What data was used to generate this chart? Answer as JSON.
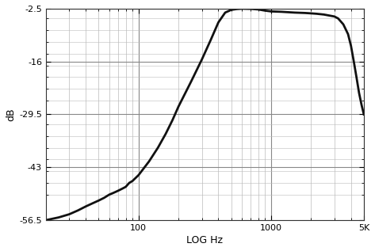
{
  "title": "",
  "xlabel": "LOG Hz",
  "ylabel": "dB",
  "xlim": [
    20,
    5000
  ],
  "ylim": [
    -56.5,
    -2.5
  ],
  "yticks": [
    -56.5,
    -43,
    -29.5,
    -16,
    -2.5
  ],
  "ytick_labels": [
    "-56.5",
    "-43",
    "-29.5",
    "-16",
    "-2.5"
  ],
  "xtick_major": [
    100,
    1000,
    5000
  ],
  "xtick_major_labels": [
    "100",
    "1000",
    "5K"
  ],
  "xtick_minor": [
    20,
    30,
    40,
    50,
    60,
    70,
    80,
    90,
    200,
    300,
    400,
    500,
    600,
    700,
    800,
    900,
    2000,
    3000,
    4000
  ],
  "line_color": "#111111",
  "line_width": 2.0,
  "background_color": "#ffffff",
  "grid_major_color": "#888888",
  "grid_minor_color": "#bbbbbb",
  "curve_freqs": [
    20,
    25,
    30,
    35,
    40,
    45,
    50,
    55,
    60,
    65,
    70,
    75,
    80,
    85,
    90,
    100,
    120,
    140,
    160,
    180,
    200,
    250,
    300,
    350,
    400,
    450,
    500,
    550,
    600,
    700,
    800,
    900,
    1000,
    1200,
    1500,
    1800,
    2000,
    2200,
    2500,
    3000,
    3200,
    3500,
    3800,
    4000,
    4200,
    4400,
    4600,
    4800,
    5000
  ],
  "curve_dB": [
    -56.5,
    -55.8,
    -55.0,
    -54.0,
    -53.0,
    -52.2,
    -51.5,
    -50.8,
    -50.0,
    -49.5,
    -49.0,
    -48.5,
    -48.0,
    -47.0,
    -46.5,
    -45.0,
    -41.5,
    -38.0,
    -34.5,
    -31.0,
    -27.5,
    -21.0,
    -15.5,
    -10.5,
    -6.0,
    -3.5,
    -2.8,
    -2.6,
    -2.5,
    -2.55,
    -2.7,
    -3.0,
    -3.2,
    -3.3,
    -3.5,
    -3.6,
    -3.7,
    -3.8,
    -4.0,
    -4.5,
    -5.0,
    -6.5,
    -9.0,
    -12.0,
    -16.0,
    -20.0,
    -24.0,
    -27.0,
    -29.5
  ]
}
